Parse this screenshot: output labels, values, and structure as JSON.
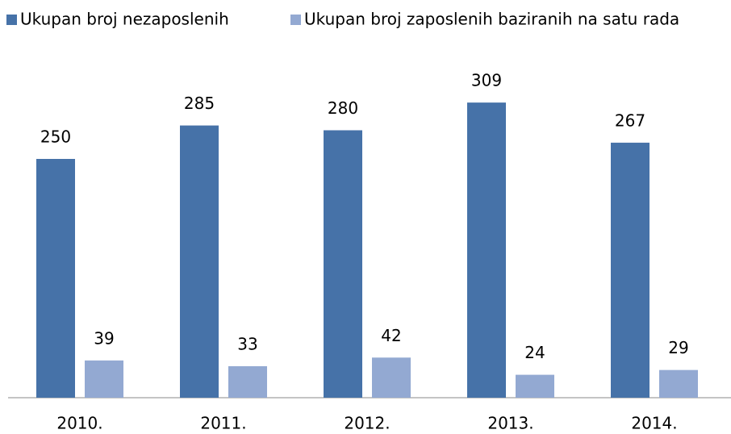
{
  "chart_data": {
    "type": "bar",
    "categories": [
      "2010.",
      "2011.",
      "2012.",
      "2013.",
      "2014."
    ],
    "series": [
      {
        "name": "Ukupan broj nezaposlenih",
        "color": "#4672a8",
        "values": [
          250,
          285,
          280,
          309,
          267
        ]
      },
      {
        "name": "Ukupan broj zaposlenih baziranih na satu rada",
        "color": "#93a9d2",
        "values": [
          39,
          33,
          42,
          24,
          29
        ]
      }
    ],
    "legend": "top"
  }
}
